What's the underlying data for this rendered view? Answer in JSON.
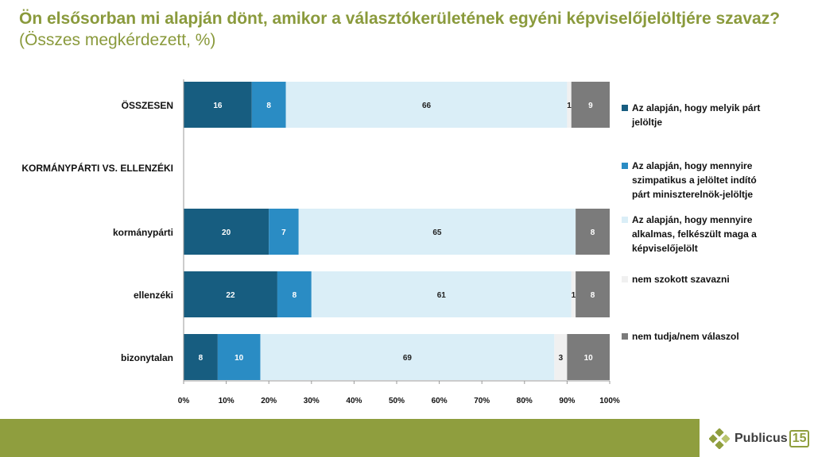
{
  "title": {
    "main": "Ön elsősorban mi alapján dönt, amikor a választókerületének egyéni képviselőjelöltjére szavaz?",
    "subtitle": "(Összes megkérdezett, %)"
  },
  "chart_data": {
    "type": "bar",
    "orientation": "horizontal",
    "stacked": true,
    "categories": [
      "ÖSSZESEN",
      "KORMÁNYPÁRTI VS. ELLENZÉKI",
      "kormánypárti",
      "ellenzéki",
      "bizonytalan"
    ],
    "series": [
      {
        "name": "Az alapján, hogy melyik párt jelöltje",
        "values": [
          16,
          null,
          20,
          22,
          8
        ]
      },
      {
        "name": "Az alapján, hogy mennyire szimpatikus a jelöltet indító párt miniszterelnök-jelöltje",
        "values": [
          8,
          null,
          7,
          8,
          10
        ]
      },
      {
        "name": "Az alapján, hogy mennyire alkalmas, felkészült maga a képviselőjelölt",
        "values": [
          66,
          null,
          65,
          61,
          69
        ]
      },
      {
        "name": "nem szokott szavazni",
        "values": [
          1,
          null,
          0,
          1,
          3
        ]
      },
      {
        "name": "nem tudja/nem válaszol",
        "values": [
          9,
          null,
          8,
          8,
          10
        ]
      }
    ],
    "colors": [
      "#175d80",
      "#2a8cc4",
      "#daeef7",
      "#f0f0f0",
      "#7b7b7b"
    ],
    "label_colors": [
      "#ffffff",
      "#ffffff",
      "#222222",
      "#222222",
      "#ffffff"
    ],
    "xlim": [
      0,
      100
    ],
    "xticks": [
      "0%",
      "10%",
      "20%",
      "30%",
      "40%",
      "50%",
      "60%",
      "70%",
      "80%",
      "90%",
      "100%"
    ],
    "legend_position": "right",
    "grid": false
  },
  "brand": {
    "name": "Publicus",
    "number": "15",
    "accent": "#8f9e3e"
  }
}
